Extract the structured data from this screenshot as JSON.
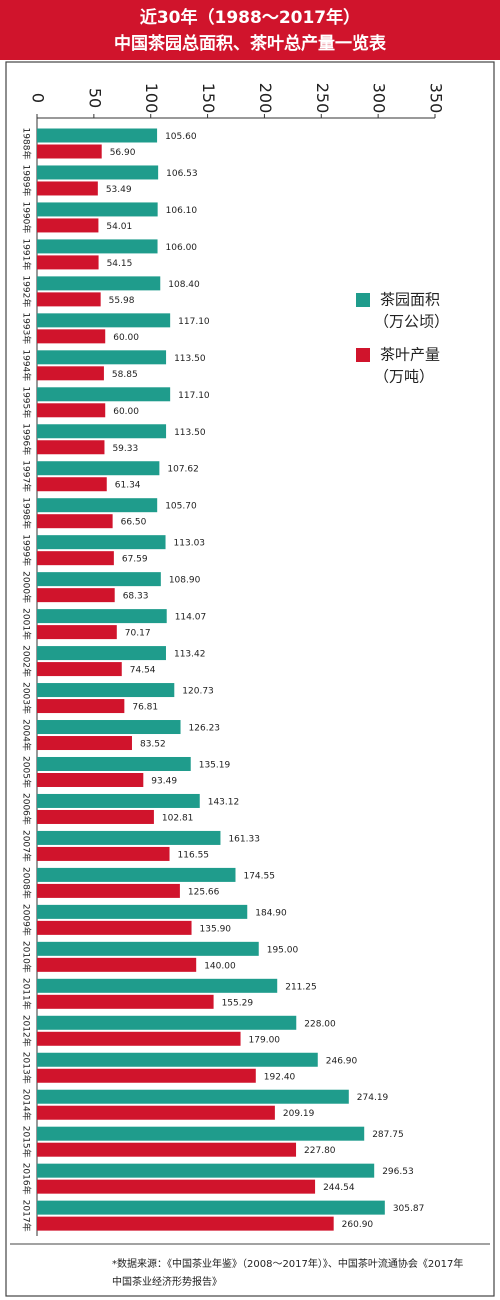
{
  "chart_data": {
    "type": "barh",
    "title": "近30年（1988～2017年）",
    "subtitle": "中国茶园总面积、茶叶总产量一览表",
    "categories": [
      "1988年",
      "1989年",
      "1990年",
      "1991年",
      "1992年",
      "1993年",
      "1994年",
      "1995年",
      "1996年",
      "1997年",
      "1998年",
      "1999年",
      "2000年",
      "2001年",
      "2002年",
      "2003年",
      "2004年",
      "2005年",
      "2006年",
      "2007年",
      "2008年",
      "2009年",
      "2010年",
      "2011年",
      "2012年",
      "2013年",
      "2014年",
      "2015年",
      "2016年",
      "2017年"
    ],
    "series": [
      {
        "name": "茶园面积",
        "unit": "（万公顷）",
        "color": "#1f9c8c",
        "values": [
          105.6,
          106.53,
          106.1,
          106,
          108.4,
          117.1,
          113.5,
          117.1,
          113.5,
          107.62,
          105.7,
          113.03,
          108.9,
          114.07,
          113.42,
          120.73,
          126.23,
          135.19,
          143.12,
          161.33,
          174.55,
          184.9,
          195,
          211.25,
          228,
          246.9,
          274.19,
          287.75,
          296.53,
          305.87
        ],
        "value_labels": [
          "105.60",
          "106.53",
          "106.10",
          "106.00",
          "108.40",
          "117.10",
          "113.50",
          "117.10",
          "113.50",
          "107.62",
          "105.70",
          "113.03",
          "108.90",
          "114.07",
          "113.42",
          "120.73",
          "126.23",
          "135.19",
          "143.12",
          "161.33",
          "174.55",
          "184.90",
          "195.00",
          "211.25",
          "228.00",
          "246.90",
          "274.19",
          "287.75",
          "296.53",
          "305.87"
        ]
      },
      {
        "name": "茶叶产量",
        "unit": "（万吨）",
        "color": "#d0142c",
        "values": [
          56.9,
          53.49,
          54.01,
          54.15,
          55.98,
          60,
          58.85,
          60,
          59.33,
          61.34,
          66.5,
          67.59,
          68.33,
          70.17,
          74.54,
          76.81,
          83.52,
          93.49,
          102.81,
          116.55,
          125.66,
          135.9,
          140,
          155.29,
          179,
          192.4,
          209.19,
          227.8,
          244.54,
          260.9
        ],
        "value_labels": [
          "56.90",
          "53.49",
          "54.01",
          "54.15",
          "55.98",
          "60.00",
          "58.85",
          "60.00",
          "59.33",
          "61.34",
          "66.50",
          "67.59",
          "68.33",
          "70.17",
          "74.54",
          "76.81",
          "83.52",
          "93.49",
          "102.81",
          "116.55",
          "125.66",
          "135.90",
          "140.00",
          "155.29",
          "179.00",
          "192.40",
          "209.19",
          "227.80",
          "244.54",
          "260.90"
        ]
      }
    ],
    "xlim": [
      0,
      350
    ],
    "xticks": [
      0,
      50,
      100,
      150,
      200,
      250,
      300,
      350
    ],
    "source": [
      "*数据来源：《中国茶业年鉴》（2008～2017年）》、中国茶叶流通协会《2017年",
      "中国茶业经济形势报告》"
    ]
  }
}
